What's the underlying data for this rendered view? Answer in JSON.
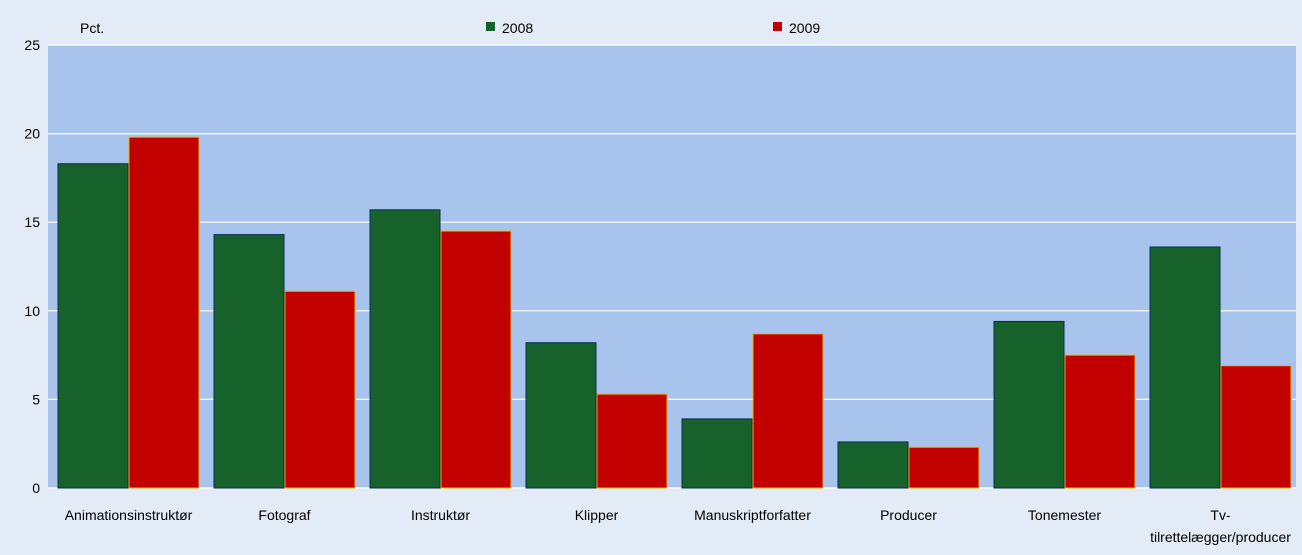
{
  "chart_data": {
    "type": "bar",
    "unit_label": "Pct.",
    "categories": [
      [
        "Animationsinstruktør"
      ],
      [
        "Fotograf"
      ],
      [
        "Instruktør"
      ],
      [
        "Klipper"
      ],
      [
        "Manuskriptforfatter"
      ],
      [
        "Producer"
      ],
      [
        "Tonemester"
      ],
      [
        "Tv-",
        "tilrettelægger/producer"
      ]
    ],
    "series": [
      {
        "name": "2008",
        "color": "#17622a",
        "values": [
          18.3,
          14.3,
          15.7,
          8.2,
          3.9,
          2.6,
          9.4,
          13.6
        ]
      },
      {
        "name": "2009",
        "color": "#c30000",
        "values": [
          19.8,
          11.1,
          14.5,
          5.3,
          8.7,
          2.3,
          7.5,
          6.9
        ]
      }
    ],
    "ylim": [
      0,
      25
    ],
    "yticks": [
      0,
      5,
      10,
      15,
      20,
      25
    ],
    "grid": true,
    "legend_position": "top",
    "colors": {
      "page_bg": "#e3ebf6",
      "plot_bg": "#a8c4ec",
      "grid": "#ffffff",
      "bar_2008_edge": "#0a2a5a",
      "bar_2009_edge": "#e6b800"
    }
  }
}
